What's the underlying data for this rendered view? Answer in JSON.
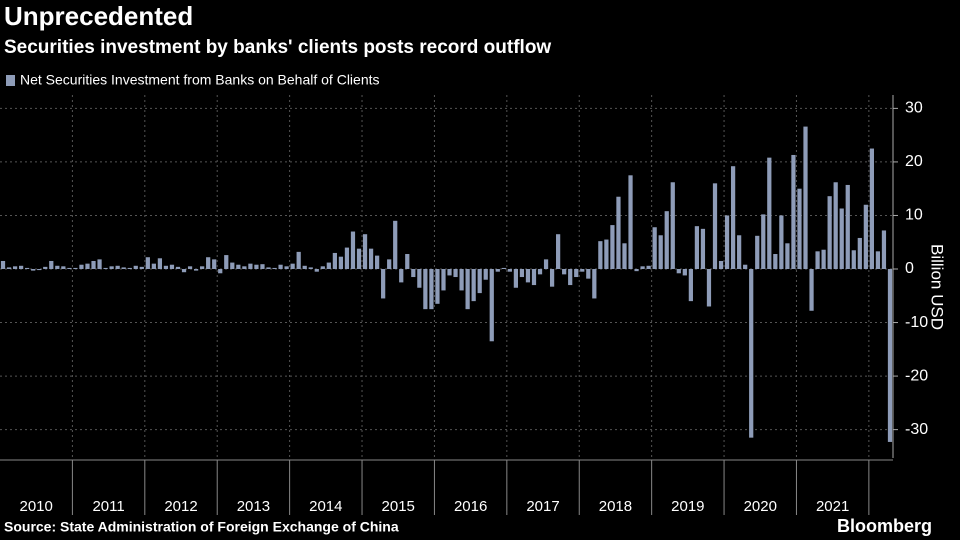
{
  "chart_data": {
    "type": "bar",
    "title": "Unprecedented",
    "subtitle": "Securities investment by banks' clients posts record outflow",
    "series": [
      {
        "name": "Net Securities Investment from Banks on Behalf of Clients",
        "color": "#8e9cb8",
        "values": [
          1.5,
          0.3,
          0.5,
          0.6,
          0.2,
          -0.3,
          -0.2,
          0.4,
          1.5,
          0.6,
          0.5,
          0.2,
          0.2,
          0.8,
          1.0,
          1.5,
          1.8,
          0.2,
          0.5,
          0.6,
          0.3,
          0.2,
          0.6,
          0.4,
          2.2,
          1.0,
          2.0,
          0.6,
          0.8,
          0.4,
          -0.6,
          0.5,
          -0.3,
          0.5,
          2.2,
          1.8,
          -0.8,
          2.6,
          1.2,
          0.8,
          0.5,
          1.0,
          0.8,
          0.9,
          0.3,
          0.2,
          0.8,
          0.5,
          1.0,
          3.2,
          0.6,
          0.3,
          -0.5,
          0.5,
          1.2,
          3.0,
          2.3,
          4.0,
          7.0,
          3.8,
          6.5,
          3.8,
          2.5,
          -5.5,
          1.8,
          9.0,
          -2.5,
          2.8,
          -1.5,
          -3.5,
          -7.5,
          -7.5,
          -6.5,
          -4.0,
          -1.2,
          -1.5,
          -4.0,
          -7.5,
          -6.0,
          -4.5,
          -2.0,
          -13.5,
          -0.5,
          0.2,
          -0.5,
          -3.5,
          -1.5,
          -2.5,
          -3.0,
          -1.0,
          1.8,
          -3.3,
          6.5,
          -1.0,
          -3.0,
          -1.5,
          -0.5,
          -1.8,
          -5.5,
          5.2,
          5.5,
          8.2,
          13.5,
          4.8,
          17.5,
          -0.4,
          0.5,
          0.6,
          7.8,
          6.3,
          10.8,
          16.2,
          -0.8,
          -1.2,
          -6.0,
          8.0,
          7.5,
          -7.0,
          16.0,
          1.5,
          10.0,
          19.2,
          6.3,
          0.8,
          -31.5,
          6.2,
          10.2,
          20.8,
          2.8,
          10.0,
          4.8,
          21.3,
          15.0,
          26.6,
          -7.8,
          3.3,
          3.6,
          13.6,
          16.2,
          11.3,
          15.7,
          3.5,
          5.8,
          12.0,
          22.5,
          3.3,
          7.2,
          -32.3
        ]
      }
    ],
    "years": [
      "2010",
      "2011",
      "2012",
      "2013",
      "2014",
      "2015",
      "2016",
      "2017",
      "2018",
      "2019",
      "2020",
      "2021"
    ],
    "y_label": "Billion USD",
    "ylim": [
      -35.3,
      32.5
    ],
    "yticks": [
      -30,
      -20,
      -10,
      0,
      10,
      20,
      30
    ],
    "grid": true,
    "source": "Source: State Administration of Foreign Exchange of China",
    "brand": "Bloomberg"
  }
}
